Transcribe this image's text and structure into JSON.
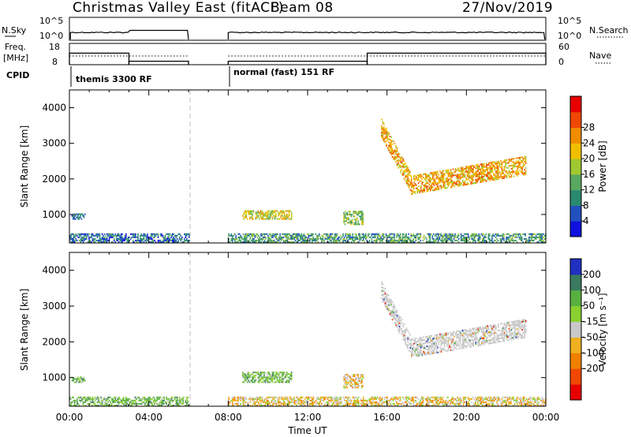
{
  "header": {
    "title": "Christmas Valley East (fitACF)",
    "beam": "Beam 08",
    "date": "27/Nov/2019"
  },
  "strip_nsky": {
    "left_label": "N.Sky",
    "right_label": "N.Search",
    "left_ticks": [
      "10^5",
      "10^0"
    ],
    "right_ticks": [
      "10^5",
      "10^0"
    ]
  },
  "strip_freq": {
    "left_label_1": "Freq.",
    "left_label_2": "[MHz]",
    "right_label": "Nave",
    "left_ticks": [
      "18",
      "8"
    ],
    "right_ticks": [
      "60",
      "0"
    ],
    "freq_steps": [
      {
        "from": 0.0,
        "to": 3.0,
        "value": 15.3
      },
      {
        "from": 3.0,
        "to": 6.0,
        "value": 10.2
      },
      {
        "from": 8.0,
        "to": 15.0,
        "value": 10.2
      },
      {
        "from": 15.0,
        "to": 24.0,
        "value": 15.3
      }
    ]
  },
  "cpid": {
    "label": "CPID",
    "modes": [
      {
        "start": 0.0,
        "text": "themis 3300 RF"
      },
      {
        "start": 8.0,
        "text": "normal (fast) 151 RF"
      }
    ]
  },
  "chart_data": [
    {
      "type": "heatmap",
      "panel": "power",
      "xlabel": "",
      "ylabel": "Slant Range [km]",
      "xlim": [
        0,
        24
      ],
      "ylim": [
        200,
        4500
      ],
      "yticks": [
        "1000",
        "2000",
        "3000",
        "4000"
      ],
      "data_gap": [
        6.0,
        8.0
      ],
      "colorbar_label": "Power [dB]",
      "colorbar_ticks": [
        "4",
        "8",
        "12",
        "16",
        "20",
        "24",
        "28"
      ],
      "colorbar_colors": [
        "#1010e0",
        "#2050c0",
        "#2a8a70",
        "#5aa860",
        "#a0c830",
        "#f0c000",
        "#f08c00",
        "#f04800",
        "#e80000"
      ],
      "echo_regions": [
        {
          "t": [
            0.1,
            0.8
          ],
          "r": [
            850,
            1000
          ],
          "level": 2
        },
        {
          "t": [
            8.7,
            11.2
          ],
          "r": [
            850,
            1100
          ],
          "level": 5
        },
        {
          "t": [
            13.8,
            14.8
          ],
          "r": [
            700,
            1100
          ],
          "level": 4
        },
        {
          "t": [
            15.7,
            23.0
          ],
          "r": [
            1500,
            3500
          ],
          "level": 6
        },
        {
          "t": [
            0.0,
            6.0
          ],
          "r": [
            200,
            450
          ],
          "level": 2
        },
        {
          "t": [
            8.0,
            24.0
          ],
          "r": [
            200,
            450
          ],
          "level": 3
        }
      ]
    },
    {
      "type": "heatmap",
      "panel": "velocity",
      "xlabel": "Time UT",
      "ylabel": "Slant Range [km]",
      "xlim": [
        0,
        24
      ],
      "ylim": [
        200,
        4500
      ],
      "xticks": [
        "00:00",
        "04:00",
        "08:00",
        "12:00",
        "16:00",
        "20:00",
        "00:00"
      ],
      "yticks": [
        "1000",
        "2000",
        "3000",
        "4000"
      ],
      "data_gap": [
        6.0,
        8.0
      ],
      "colorbar_label": "Velocity [m s⁻¹]",
      "colorbar_ticks": [
        "200",
        "100",
        "50",
        "-15",
        "-50",
        "-100",
        "-200"
      ],
      "colorbar_colors": [
        "#2030c0",
        "#3a7a60",
        "#58b040",
        "#8ad030",
        "#c8c8c8",
        "#f0b020",
        "#f08000",
        "#f04800",
        "#e80000"
      ],
      "echo_regions": [
        {
          "t": [
            0.1,
            0.8
          ],
          "r": [
            850,
            1000
          ],
          "level": 3
        },
        {
          "t": [
            8.7,
            11.2
          ],
          "r": [
            850,
            1150
          ],
          "level": 3
        },
        {
          "t": [
            13.8,
            14.8
          ],
          "r": [
            700,
            1100
          ],
          "level": 5
        },
        {
          "t": [
            15.7,
            23.0
          ],
          "r": [
            1500,
            3500
          ],
          "level": 4
        },
        {
          "t": [
            0.0,
            6.0
          ],
          "r": [
            200,
            450
          ],
          "level": 3
        },
        {
          "t": [
            8.0,
            24.0
          ],
          "r": [
            200,
            450
          ],
          "level": 5
        }
      ]
    }
  ]
}
